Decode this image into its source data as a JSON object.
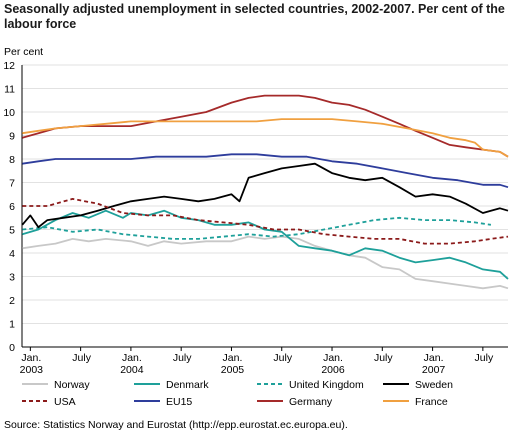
{
  "chart_data": {
    "type": "line",
    "title": "Seasonally adjusted unemployment in selected countries, 2002-2007. Per cent of the labour force",
    "ylabel": "Per cent",
    "xlabel": "",
    "ylim": [
      0,
      12
    ],
    "yticks": [
      "0",
      "1",
      "2",
      "3",
      "4",
      "5",
      "6",
      "7",
      "8",
      "9",
      "10",
      "11",
      "12"
    ],
    "xlim": [
      2002.917,
      2007.75
    ],
    "xticks": [
      {
        "x": 2003.0,
        "label": "Jan.",
        "year": "2003"
      },
      {
        "x": 2003.5,
        "label": "July",
        "year": ""
      },
      {
        "x": 2004.0,
        "label": "Jan.",
        "year": "2004"
      },
      {
        "x": 2004.5,
        "label": "July",
        "year": ""
      },
      {
        "x": 2005.0,
        "label": "Jan.",
        "year": "2005"
      },
      {
        "x": 2005.5,
        "label": "July",
        "year": ""
      },
      {
        "x": 2006.0,
        "label": "Jan.",
        "year": "2006"
      },
      {
        "x": 2006.5,
        "label": "July",
        "year": ""
      },
      {
        "x": 2007.0,
        "label": "Jan.",
        "year": "2007"
      },
      {
        "x": 2007.5,
        "label": "July",
        "year": ""
      }
    ],
    "grid": true,
    "legend_position": "bottom",
    "series": [
      {
        "name": "Norway",
        "color": "#c8c8c8",
        "dash": "solid",
        "points": [
          [
            2002.92,
            4.2
          ],
          [
            2003.08,
            4.3
          ],
          [
            2003.25,
            4.4
          ],
          [
            2003.42,
            4.6
          ],
          [
            2003.58,
            4.5
          ],
          [
            2003.75,
            4.6
          ],
          [
            2004.0,
            4.5
          ],
          [
            2004.17,
            4.3
          ],
          [
            2004.33,
            4.5
          ],
          [
            2004.5,
            4.4
          ],
          [
            2004.75,
            4.5
          ],
          [
            2005.0,
            4.5
          ],
          [
            2005.17,
            4.7
          ],
          [
            2005.33,
            4.6
          ],
          [
            2005.5,
            4.7
          ],
          [
            2005.67,
            4.6
          ],
          [
            2005.83,
            4.3
          ],
          [
            2006.0,
            4.1
          ],
          [
            2006.17,
            3.9
          ],
          [
            2006.33,
            3.8
          ],
          [
            2006.5,
            3.4
          ],
          [
            2006.67,
            3.3
          ],
          [
            2006.83,
            2.9
          ],
          [
            2007.0,
            2.8
          ],
          [
            2007.17,
            2.7
          ],
          [
            2007.33,
            2.6
          ],
          [
            2007.5,
            2.5
          ],
          [
            2007.67,
            2.6
          ],
          [
            2007.75,
            2.5
          ]
        ]
      },
      {
        "name": "Denmark",
        "color": "#1ea09a",
        "dash": "solid",
        "points": [
          [
            2002.92,
            4.8
          ],
          [
            2003.08,
            5.0
          ],
          [
            2003.25,
            5.4
          ],
          [
            2003.42,
            5.7
          ],
          [
            2003.58,
            5.5
          ],
          [
            2003.75,
            5.8
          ],
          [
            2003.92,
            5.5
          ],
          [
            2004.0,
            5.7
          ],
          [
            2004.17,
            5.6
          ],
          [
            2004.33,
            5.8
          ],
          [
            2004.5,
            5.5
          ],
          [
            2004.67,
            5.4
          ],
          [
            2004.83,
            5.2
          ],
          [
            2005.0,
            5.2
          ],
          [
            2005.17,
            5.3
          ],
          [
            2005.33,
            5.0
          ],
          [
            2005.5,
            4.9
          ],
          [
            2005.67,
            4.3
          ],
          [
            2005.83,
            4.2
          ],
          [
            2006.0,
            4.1
          ],
          [
            2006.17,
            3.9
          ],
          [
            2006.33,
            4.2
          ],
          [
            2006.5,
            4.1
          ],
          [
            2006.67,
            3.8
          ],
          [
            2006.83,
            3.6
          ],
          [
            2007.0,
            3.7
          ],
          [
            2007.17,
            3.8
          ],
          [
            2007.33,
            3.6
          ],
          [
            2007.5,
            3.3
          ],
          [
            2007.67,
            3.2
          ],
          [
            2007.75,
            2.9
          ]
        ]
      },
      {
        "name": "United Kingdom",
        "color": "#1ea09a",
        "dash": "dashed",
        "points": [
          [
            2002.92,
            5.0
          ],
          [
            2003.17,
            5.1
          ],
          [
            2003.42,
            4.9
          ],
          [
            2003.67,
            5.0
          ],
          [
            2003.92,
            4.8
          ],
          [
            2004.17,
            4.7
          ],
          [
            2004.42,
            4.6
          ],
          [
            2004.67,
            4.6
          ],
          [
            2004.92,
            4.7
          ],
          [
            2005.17,
            4.8
          ],
          [
            2005.42,
            4.7
          ],
          [
            2005.67,
            4.8
          ],
          [
            2005.92,
            5.0
          ],
          [
            2006.17,
            5.2
          ],
          [
            2006.42,
            5.4
          ],
          [
            2006.67,
            5.5
          ],
          [
            2006.92,
            5.4
          ],
          [
            2007.17,
            5.4
          ],
          [
            2007.42,
            5.3
          ],
          [
            2007.58,
            5.2
          ]
        ]
      },
      {
        "name": "Sweden",
        "color": "#000000",
        "dash": "solid",
        "points": [
          [
            2002.92,
            5.2
          ],
          [
            2003.0,
            5.6
          ],
          [
            2003.08,
            5.1
          ],
          [
            2003.17,
            5.4
          ],
          [
            2003.33,
            5.5
          ],
          [
            2003.5,
            5.6
          ],
          [
            2003.67,
            5.8
          ],
          [
            2003.83,
            6.0
          ],
          [
            2004.0,
            6.2
          ],
          [
            2004.17,
            6.3
          ],
          [
            2004.33,
            6.4
          ],
          [
            2004.5,
            6.3
          ],
          [
            2004.67,
            6.2
          ],
          [
            2004.83,
            6.3
          ],
          [
            2005.0,
            6.5
          ],
          [
            2005.08,
            6.2
          ],
          [
            2005.17,
            7.2
          ],
          [
            2005.33,
            7.4
          ],
          [
            2005.5,
            7.6
          ],
          [
            2005.67,
            7.7
          ],
          [
            2005.83,
            7.8
          ],
          [
            2006.0,
            7.4
          ],
          [
            2006.17,
            7.2
          ],
          [
            2006.33,
            7.1
          ],
          [
            2006.5,
            7.2
          ],
          [
            2006.67,
            6.8
          ],
          [
            2006.83,
            6.4
          ],
          [
            2007.0,
            6.5
          ],
          [
            2007.17,
            6.4
          ],
          [
            2007.33,
            6.1
          ],
          [
            2007.5,
            5.7
          ],
          [
            2007.58,
            5.8
          ],
          [
            2007.67,
            5.9
          ],
          [
            2007.75,
            5.8
          ]
        ]
      },
      {
        "name": "USA",
        "color": "#8b1a1a",
        "dash": "dashed",
        "points": [
          [
            2002.92,
            6.0
          ],
          [
            2003.17,
            6.0
          ],
          [
            2003.42,
            6.3
          ],
          [
            2003.67,
            6.1
          ],
          [
            2003.92,
            5.7
          ],
          [
            2004.17,
            5.6
          ],
          [
            2004.42,
            5.6
          ],
          [
            2004.67,
            5.4
          ],
          [
            2004.92,
            5.3
          ],
          [
            2005.17,
            5.2
          ],
          [
            2005.42,
            5.0
          ],
          [
            2005.67,
            5.0
          ],
          [
            2005.92,
            4.8
          ],
          [
            2006.17,
            4.7
          ],
          [
            2006.42,
            4.6
          ],
          [
            2006.67,
            4.6
          ],
          [
            2006.92,
            4.4
          ],
          [
            2007.17,
            4.4
          ],
          [
            2007.42,
            4.5
          ],
          [
            2007.58,
            4.6
          ],
          [
            2007.75,
            4.7
          ]
        ]
      },
      {
        "name": "EU15",
        "color": "#2e3d9c",
        "dash": "solid",
        "points": [
          [
            2002.92,
            7.8
          ],
          [
            2003.08,
            7.9
          ],
          [
            2003.25,
            8.0
          ],
          [
            2003.5,
            8.0
          ],
          [
            2003.75,
            8.0
          ],
          [
            2004.0,
            8.0
          ],
          [
            2004.25,
            8.1
          ],
          [
            2004.5,
            8.1
          ],
          [
            2004.75,
            8.1
          ],
          [
            2005.0,
            8.2
          ],
          [
            2005.25,
            8.2
          ],
          [
            2005.5,
            8.1
          ],
          [
            2005.75,
            8.1
          ],
          [
            2006.0,
            7.9
          ],
          [
            2006.25,
            7.8
          ],
          [
            2006.5,
            7.6
          ],
          [
            2006.75,
            7.4
          ],
          [
            2007.0,
            7.2
          ],
          [
            2007.25,
            7.1
          ],
          [
            2007.5,
            6.9
          ],
          [
            2007.67,
            6.9
          ],
          [
            2007.75,
            6.8
          ]
        ]
      },
      {
        "name": "Germany",
        "color": "#a52a2a",
        "dash": "solid",
        "points": [
          [
            2002.92,
            8.9
          ],
          [
            2003.08,
            9.1
          ],
          [
            2003.25,
            9.3
          ],
          [
            2003.5,
            9.4
          ],
          [
            2003.75,
            9.4
          ],
          [
            2004.0,
            9.4
          ],
          [
            2004.25,
            9.6
          ],
          [
            2004.5,
            9.8
          ],
          [
            2004.75,
            10.0
          ],
          [
            2005.0,
            10.4
          ],
          [
            2005.17,
            10.6
          ],
          [
            2005.33,
            10.7
          ],
          [
            2005.5,
            10.7
          ],
          [
            2005.67,
            10.7
          ],
          [
            2005.83,
            10.6
          ],
          [
            2006.0,
            10.4
          ],
          [
            2006.17,
            10.3
          ],
          [
            2006.33,
            10.1
          ],
          [
            2006.5,
            9.8
          ],
          [
            2006.67,
            9.5
          ],
          [
            2006.83,
            9.2
          ],
          [
            2007.0,
            8.9
          ],
          [
            2007.17,
            8.6
          ],
          [
            2007.33,
            8.5
          ],
          [
            2007.5,
            8.4
          ],
          [
            2007.67,
            8.3
          ],
          [
            2007.75,
            8.1
          ]
        ]
      },
      {
        "name": "France",
        "color": "#f0a040",
        "dash": "solid",
        "points": [
          [
            2002.92,
            9.1
          ],
          [
            2003.08,
            9.2
          ],
          [
            2003.25,
            9.3
          ],
          [
            2003.5,
            9.4
          ],
          [
            2003.75,
            9.5
          ],
          [
            2004.0,
            9.6
          ],
          [
            2004.25,
            9.6
          ],
          [
            2004.5,
            9.6
          ],
          [
            2004.75,
            9.6
          ],
          [
            2005.0,
            9.6
          ],
          [
            2005.25,
            9.6
          ],
          [
            2005.5,
            9.7
          ],
          [
            2005.75,
            9.7
          ],
          [
            2006.0,
            9.7
          ],
          [
            2006.25,
            9.6
          ],
          [
            2006.5,
            9.5
          ],
          [
            2006.75,
            9.3
          ],
          [
            2007.0,
            9.1
          ],
          [
            2007.17,
            8.9
          ],
          [
            2007.33,
            8.8
          ],
          [
            2007.42,
            8.7
          ],
          [
            2007.5,
            8.4
          ],
          [
            2007.67,
            8.3
          ],
          [
            2007.75,
            8.1
          ]
        ]
      }
    ]
  },
  "source": "Source: Statistics Norway and Eurostat (http://epp.eurostat.ec.europa.eu)."
}
